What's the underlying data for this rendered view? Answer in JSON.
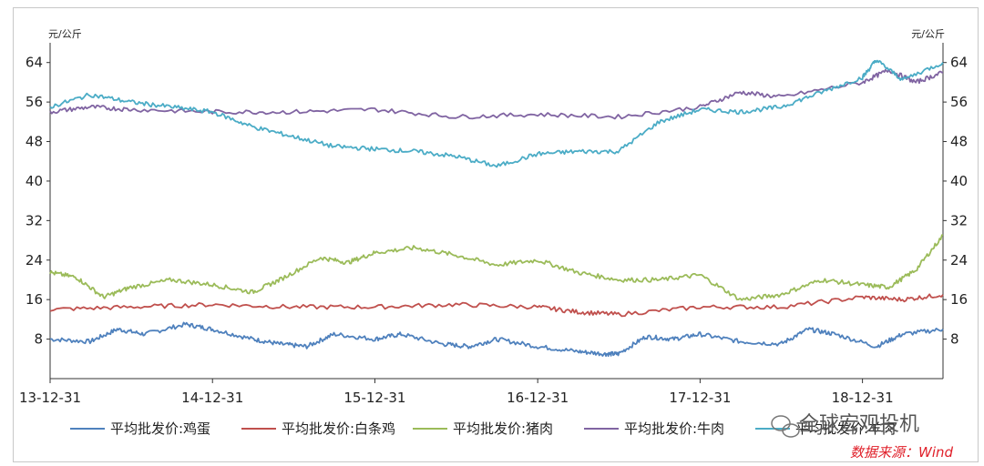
{
  "chart_data": {
    "type": "line",
    "unit_left": "元/公斤",
    "unit_right": "元/公斤",
    "x_tick_labels": [
      "13-12-31",
      "14-12-31",
      "15-12-31",
      "16-12-31",
      "17-12-31",
      "18-12-31"
    ],
    "x_range": [
      "2013-12-31",
      "2019-06-30"
    ],
    "ylim": [
      0,
      68
    ],
    "y_ticks": [
      8,
      16,
      24,
      32,
      40,
      48,
      56,
      64
    ],
    "y_tick_labels": [
      "8",
      "16",
      "24",
      "32",
      "40",
      "48",
      "56",
      "64"
    ],
    "grid": false,
    "legend_position": "bottom",
    "series": [
      {
        "name": "平均批发价:鸡蛋",
        "color": "#4f81bd",
        "x": [
          "2013-12-31",
          "2014-03-31",
          "2014-05-31",
          "2014-07-31",
          "2014-10-31",
          "2014-12-31",
          "2015-03-31",
          "2015-05-31",
          "2015-07-31",
          "2015-09-30",
          "2015-12-31",
          "2016-02-28",
          "2016-05-31",
          "2016-07-31",
          "2016-09-30",
          "2016-12-31",
          "2017-03-31",
          "2017-05-31",
          "2017-06-30",
          "2017-08-31",
          "2017-10-31",
          "2017-12-31",
          "2018-03-31",
          "2018-06-30",
          "2018-08-31",
          "2018-10-31",
          "2019-01-31",
          "2019-03-31",
          "2019-06-30"
        ],
        "values": [
          8,
          7.5,
          10,
          9,
          11,
          10,
          8,
          7,
          6.5,
          9,
          8,
          9,
          7,
          6.5,
          8,
          6.5,
          5.5,
          5,
          5,
          8.5,
          8,
          9,
          7.5,
          7,
          10,
          9,
          6.5,
          9,
          10
        ]
      },
      {
        "name": "平均批发价:白条鸡",
        "color": "#c0504d",
        "x": [
          "2013-12-31",
          "2014-06-30",
          "2014-12-31",
          "2015-06-30",
          "2015-12-31",
          "2016-06-30",
          "2016-12-31",
          "2017-03-31",
          "2017-06-30",
          "2017-12-31",
          "2018-06-30",
          "2018-12-31",
          "2019-03-31",
          "2019-06-30"
        ],
        "values": [
          14,
          14.5,
          15,
          14.5,
          14.5,
          15,
          14.5,
          13.5,
          13,
          14.5,
          14.5,
          16.5,
          16,
          17
        ]
      },
      {
        "name": "平均批发价:猪肉",
        "color": "#9bbb59",
        "x": [
          "2013-12-31",
          "2014-02-28",
          "2014-04-30",
          "2014-06-30",
          "2014-09-30",
          "2014-12-31",
          "2015-03-31",
          "2015-05-31",
          "2015-08-31",
          "2015-10-31",
          "2015-12-31",
          "2016-03-31",
          "2016-06-30",
          "2016-09-30",
          "2016-12-31",
          "2017-03-31",
          "2017-06-30",
          "2017-09-30",
          "2017-12-31",
          "2018-03-31",
          "2018-06-30",
          "2018-09-30",
          "2018-12-31",
          "2019-02-28",
          "2019-04-30",
          "2019-06-30"
        ],
        "values": [
          21.5,
          20.5,
          16.5,
          18.5,
          20,
          19,
          17.5,
          20,
          24.5,
          23.5,
          25.5,
          26.5,
          25,
          23,
          24,
          21.5,
          20,
          20,
          21,
          16,
          17,
          20,
          19,
          18.5,
          22,
          29
        ]
      },
      {
        "name": "平均批发价:牛肉",
        "color": "#8064a2",
        "x": [
          "2013-12-31",
          "2014-03-31",
          "2014-06-30",
          "2014-12-31",
          "2015-06-30",
          "2015-12-31",
          "2016-06-30",
          "2016-12-31",
          "2017-06-30",
          "2017-12-31",
          "2018-03-31",
          "2018-06-30",
          "2018-12-31",
          "2019-02-28",
          "2019-04-30",
          "2019-06-30"
        ],
        "values": [
          54,
          55,
          54.5,
          54,
          54,
          54.5,
          53,
          53.5,
          53,
          55,
          58,
          57,
          60,
          62.5,
          60,
          62
        ]
      },
      {
        "name": "平均批发价:羊肉",
        "color": "#4bacc6",
        "x": [
          "2013-12-31",
          "2014-03-31",
          "2014-06-30",
          "2014-09-30",
          "2014-12-31",
          "2015-03-31",
          "2015-06-30",
          "2015-09-30",
          "2015-12-31",
          "2016-03-31",
          "2016-06-30",
          "2016-09-30",
          "2016-12-31",
          "2017-03-31",
          "2017-06-30",
          "2017-09-30",
          "2017-12-31",
          "2018-03-31",
          "2018-06-30",
          "2018-09-30",
          "2018-12-31",
          "2019-01-31",
          "2019-03-31",
          "2019-06-30"
        ],
        "values": [
          55,
          57.5,
          56,
          55,
          54,
          51,
          49,
          47,
          46.5,
          46,
          45,
          43,
          45.5,
          46,
          46,
          52,
          54.5,
          54,
          55,
          58,
          61,
          64.5,
          60.5,
          64
        ]
      }
    ]
  },
  "watermark": "全球宏观投机",
  "source_note": "数据来源：Wind"
}
